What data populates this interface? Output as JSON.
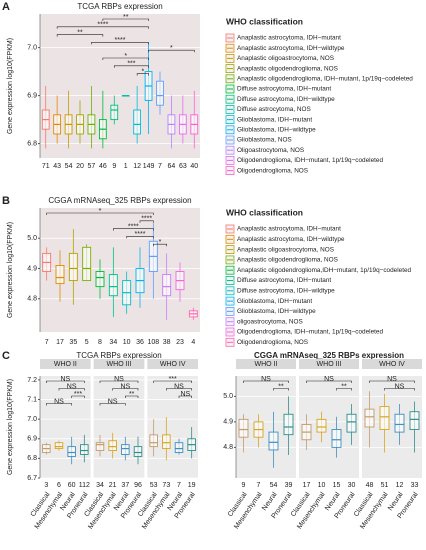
{
  "chart_data": [
    {
      "type": "box",
      "label": "A",
      "title": "TCGA RBPs expression",
      "ylabel": "Gene expression log10(FPKM)",
      "legend_title": "WHO classification",
      "categories": [
        "Anaplastic astrocytoma, IDH−mutant",
        "Anaplastic astrocytoma, IDH−wildtype",
        "Anaplastic oligoastrocytoma, NOS",
        "Anaplastic oligodendroglioma, NOS",
        "Anaplastic oligodendroglioma, IDH−mutant, 1p/19q−codeleted",
        "Diffuse astrocytoma, IDH−mutant",
        "Diffuse astrocytoma, IDH−wildtype",
        "Diffuse astrocytoma, NOS",
        "Glioblastoma, IDH−mutant",
        "Glioblastoma, IDH−wildtype",
        "Glioblastoma, NOS",
        "Oligoastrocytoma, NOS",
        "Oligodendroglioma, IDH−mutant, 1p/19q−codeleted",
        "Oligodendroglioma, NOS"
      ],
      "colors": [
        "#F8766D",
        "#E58700",
        "#C99800",
        "#A3A500",
        "#6BB100",
        "#00BA38",
        "#00BF7D",
        "#00C0AF",
        "#00BCD8",
        "#00B0F6",
        "#619CFF",
        "#B983FF",
        "#E76BF3",
        "#FD61D1"
      ],
      "counts": [
        71,
        43,
        54,
        20,
        57,
        46,
        9,
        1,
        12,
        149,
        7,
        64,
        63,
        40
      ],
      "median": [
        6.85,
        6.84,
        6.84,
        6.84,
        6.84,
        6.83,
        6.87,
        6.9,
        6.84,
        6.92,
        6.9,
        6.84,
        6.84,
        6.84
      ],
      "q1": [
        6.83,
        6.82,
        6.82,
        6.82,
        6.82,
        6.81,
        6.85,
        6.9,
        6.82,
        6.89,
        6.88,
        6.82,
        6.82,
        6.82
      ],
      "q3": [
        6.87,
        6.86,
        6.86,
        6.86,
        6.86,
        6.85,
        6.88,
        6.9,
        6.87,
        6.95,
        6.93,
        6.86,
        6.86,
        6.86
      ],
      "low": [
        6.79,
        6.8,
        6.79,
        6.8,
        6.79,
        6.79,
        6.84,
        6.9,
        6.8,
        6.82,
        6.86,
        6.79,
        6.8,
        6.79
      ],
      "high": [
        6.92,
        6.9,
        6.91,
        6.89,
        6.92,
        6.91,
        6.9,
        6.9,
        6.92,
        7.01,
        6.95,
        6.9,
        6.9,
        6.91
      ],
      "ylim": [
        6.77,
        7.07
      ],
      "yticks": [
        6.8,
        6.9,
        {
          "value": 7,
          "label": "7.0"
        }
      ],
      "grid": true,
      "brackets": [
        {
          "label": "**",
          "from": 5,
          "to": 9
        },
        {
          "label": "****",
          "from": 1,
          "to": 9
        },
        {
          "label": "**",
          "from": 1,
          "to": 5
        },
        {
          "label": "****",
          "from": 4,
          "to": 9
        },
        {
          "label": "*",
          "from": 9,
          "to": 13
        },
        {
          "label": "*",
          "from": 5,
          "to": 9
        },
        {
          "label": "***",
          "from": 6,
          "to": 9
        },
        {
          "label": "*",
          "from": 8,
          "to": 9
        }
      ]
    },
    {
      "type": "box",
      "label": "B",
      "title": "CGGA mRNAseq_325 RBPs expression",
      "ylabel": "Gene expression log10(FPKM)",
      "legend_title": "WHO classification",
      "categories": [
        "Anaplastic astrocytoma, IDH−mutant",
        "Anaplastic astrocytoma, IDH−wildtype",
        "Anaplastic oligoastrocytoma, NOS",
        "Anaplastic oligodendroglioma, NOS",
        "Anaplastic oligodendroglioma,IDH−mutant, 1p/19q−codeleted",
        "Diffuse astrocytoma, IDH−mutant",
        "Diffuse astrocytoma, IDH−wildtype",
        "Glioblastoma, IDH−mutant",
        "Glioblastoma, IDH−wildtype",
        "oligoastrocytoma, NOS",
        "Oligodendroglioma, IDH−mutant, 1p/19q−codeleted",
        "Oligodendroglioma, NOS"
      ],
      "colors": [
        "#F8766D",
        "#DE8C00",
        "#B79F00",
        "#7CAE00",
        "#00BA38",
        "#00C08B",
        "#00BFC4",
        "#00B4F0",
        "#619CFF",
        "#C77CFF",
        "#F564E3",
        "#FF64B0"
      ],
      "counts": [
        7,
        17,
        35,
        5,
        8,
        34,
        10,
        36,
        108,
        38,
        23,
        4
      ],
      "median": [
        4.92,
        4.87,
        4.9,
        4.9,
        4.87,
        4.84,
        4.82,
        4.86,
        4.94,
        4.84,
        4.86,
        4.75
      ],
      "q1": [
        4.89,
        4.85,
        4.86,
        4.86,
        4.84,
        4.81,
        4.78,
        4.82,
        4.89,
        4.81,
        4.83,
        4.74
      ],
      "q3": [
        4.95,
        4.91,
        4.95,
        4.97,
        4.89,
        4.88,
        4.86,
        4.9,
        4.99,
        4.88,
        4.89,
        4.76
      ],
      "low": [
        4.86,
        4.79,
        4.78,
        4.86,
        4.8,
        4.74,
        4.75,
        4.77,
        4.8,
        4.73,
        4.79,
        4.73
      ],
      "high": [
        4.97,
        4.96,
        5.03,
        4.98,
        4.93,
        4.97,
        4.89,
        4.97,
        5.05,
        4.95,
        4.92,
        4.77
      ],
      "ylim": [
        4.69,
        5.1
      ],
      "yticks": [
        4.8,
        4.9,
        {
          "value": 5,
          "label": "5.0"
        }
      ],
      "grid": true,
      "brackets": [
        {
          "label": "*",
          "from": 0,
          "to": 8
        },
        {
          "label": "****",
          "from": 7,
          "to": 8
        },
        {
          "label": "****",
          "from": 5,
          "to": 8
        },
        {
          "label": "****",
          "from": 6,
          "to": 8
        },
        {
          "label": "*",
          "from": 8,
          "to": 9
        }
      ]
    },
    {
      "type": "box",
      "label": "C",
      "title": "TCGA RBPs expression",
      "ylabel": "Gene expression log10(FPKM)",
      "categories": [
        "Classical",
        "Mesenchymal",
        "Neural",
        "Proneural"
      ],
      "colors": [
        "#c49a6c",
        "#d9a520",
        "#3f8fc0",
        "#2f8f8a"
      ],
      "ylim": [
        6.7,
        7.22
      ],
      "yticks": [
        6.7,
        6.8,
        6.9,
        {
          "value": 7,
          "label": "7.0"
        },
        7.1,
        7.2
      ],
      "grid": true,
      "facets": [
        {
          "name": "WHO II",
          "counts": [
            3,
            6,
            60,
            112
          ],
          "median": [
            6.85,
            6.86,
            6.83,
            6.84
          ],
          "q1": [
            6.83,
            6.85,
            6.81,
            6.82
          ],
          "q3": [
            6.87,
            6.88,
            6.86,
            6.87
          ],
          "low": [
            6.82,
            6.84,
            6.77,
            6.78
          ],
          "high": [
            6.88,
            6.89,
            6.91,
            6.92
          ],
          "brackets": [
            {
              "label": "NS",
              "from": 0,
              "to": 3
            },
            {
              "label": "NS",
              "from": 1,
              "to": 3
            },
            {
              "label": "***",
              "from": 2,
              "to": 3
            },
            {
              "label": "NS",
              "from": 0,
              "to": 2
            }
          ]
        },
        {
          "name": "WHO III",
          "counts": [
            34,
            21,
            37,
            96
          ],
          "median": [
            6.87,
            6.86,
            6.85,
            6.83
          ],
          "q1": [
            6.84,
            6.84,
            6.82,
            6.81
          ],
          "q3": [
            6.88,
            6.89,
            6.87,
            6.86
          ],
          "low": [
            6.81,
            6.8,
            6.79,
            6.77
          ],
          "high": [
            6.92,
            6.93,
            6.91,
            6.91
          ],
          "brackets": [
            {
              "label": "NS",
              "from": 0,
              "to": 3
            },
            {
              "label": "NS",
              "from": 1,
              "to": 3
            },
            {
              "label": "**",
              "from": 2,
              "to": 3
            },
            {
              "label": "NS",
              "from": 0,
              "to": 2
            }
          ]
        },
        {
          "name": "WHO IV",
          "counts": [
            53,
            73,
            7,
            19
          ],
          "median": [
            6.88,
            6.88,
            6.85,
            6.87
          ],
          "q1": [
            6.86,
            6.85,
            6.83,
            6.84
          ],
          "q3": [
            6.92,
            6.92,
            6.88,
            6.9
          ],
          "low": [
            6.81,
            6.79,
            6.82,
            6.8
          ],
          "high": [
            7.0,
            7.01,
            6.9,
            6.96
          ],
          "brackets": [
            {
              "label": "***",
              "from": 0,
              "to": 3
            },
            {
              "label": "NS",
              "from": 1,
              "to": 3
            },
            {
              "label": "NS",
              "from": 2,
              "to": 3
            }
          ]
        }
      ]
    },
    {
      "type": "box",
      "title": "CGGA mRNAseq_325 RBPs expression",
      "categories": [
        "Classical",
        "Mesenchymal",
        "Neural",
        "Proneural"
      ],
      "colors": [
        "#c49a6c",
        "#d9a520",
        "#3f8fc0",
        "#2f8f8a"
      ],
      "ylim": [
        4.68,
        5.08
      ],
      "yticks": [
        4.8,
        4.9,
        {
          "value": 5,
          "label": "5.0"
        }
      ],
      "grid": true,
      "facets": [
        {
          "name": "WHO II",
          "counts": [
            9,
            7,
            54,
            39
          ],
          "median": [
            4.87,
            4.87,
            4.82,
            4.88
          ],
          "q1": [
            4.84,
            4.84,
            4.79,
            4.85
          ],
          "q3": [
            4.91,
            4.9,
            4.86,
            4.93
          ],
          "low": [
            4.78,
            4.8,
            4.72,
            4.77
          ],
          "high": [
            4.93,
            4.93,
            4.94,
            5.0
          ],
          "brackets": [
            {
              "label": "NS",
              "from": 0,
              "to": 3
            },
            {
              "label": "**",
              "from": 2,
              "to": 3
            }
          ]
        },
        {
          "name": "WHO III",
          "counts": [
            17,
            10,
            15,
            30
          ],
          "median": [
            4.86,
            4.88,
            4.83,
            4.9
          ],
          "q1": [
            4.83,
            4.86,
            4.8,
            4.86
          ],
          "q3": [
            4.89,
            4.91,
            4.87,
            4.93
          ],
          "low": [
            4.79,
            4.82,
            4.76,
            4.81
          ],
          "high": [
            4.93,
            4.94,
            4.92,
            4.97
          ],
          "brackets": [
            {
              "label": "NS",
              "from": 0,
              "to": 3
            },
            {
              "label": "**",
              "from": 2,
              "to": 3
            }
          ]
        },
        {
          "name": "WHO IV",
          "counts": [
            48,
            51,
            12,
            33
          ],
          "median": [
            4.92,
            4.92,
            4.89,
            4.91
          ],
          "q1": [
            4.88,
            4.87,
            4.86,
            4.87
          ],
          "q3": [
            4.95,
            4.96,
            4.93,
            4.94
          ],
          "low": [
            4.8,
            4.78,
            4.81,
            4.78
          ],
          "high": [
            5.02,
            5.01,
            4.97,
            4.98
          ],
          "brackets": [
            {
              "label": "NS",
              "from": 0,
              "to": 3
            },
            {
              "label": "NS",
              "from": 1,
              "to": 3
            }
          ]
        }
      ]
    }
  ]
}
